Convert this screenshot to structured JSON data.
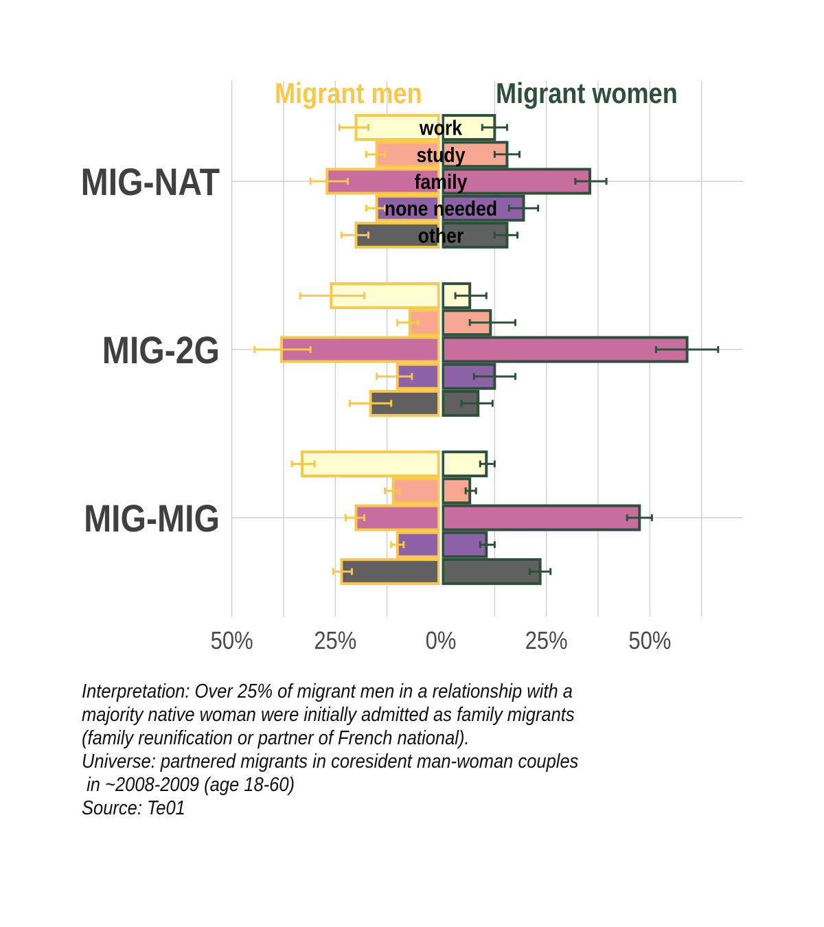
{
  "chart_data": {
    "type": "bar",
    "orientation": "horizontal-diverging",
    "groups": [
      "MIG-NAT",
      "MIG-2G",
      "MIG-MIG"
    ],
    "categories": [
      "work",
      "study",
      "family",
      "none needed",
      "other"
    ],
    "category_colors": [
      "#ffffd2",
      "#f8a792",
      "#c86e9f",
      "#8e62a6",
      "#606060"
    ],
    "sides": [
      {
        "name": "Migrant men",
        "color": "#f7c84a",
        "direction": "left",
        "values": [
          [
            20,
            15,
            27,
            15,
            20
          ],
          [
            26,
            7,
            38,
            10,
            16.5
          ],
          [
            33,
            11,
            20,
            10,
            23.5
          ]
        ],
        "errors": [
          [
            [
              17,
              24
            ],
            [
              13,
              17.5
            ],
            [
              22,
              31
            ],
            [
              13,
              17.5
            ],
            [
              17,
              23.5
            ]
          ],
          [
            [
              18,
              33.5
            ],
            [
              5,
              10
            ],
            [
              31,
              44.5
            ],
            [
              6.5,
              15
            ],
            [
              11.5,
              21.5
            ]
          ],
          [
            [
              30,
              35.5
            ],
            [
              9.5,
              13
            ],
            [
              18,
              22.5
            ],
            [
              8.5,
              11.5
            ],
            [
              21,
              25.5
            ]
          ]
        ]
      },
      {
        "name": "Migrant women",
        "color": "#2e4f3c",
        "direction": "right",
        "values": [
          [
            12.5,
            15.5,
            35.5,
            19.5,
            15.5
          ],
          [
            6.5,
            11.5,
            59,
            12.5,
            8.5
          ],
          [
            10.5,
            6.5,
            47.5,
            10.5,
            23.5
          ]
        ],
        "errors": [
          [
            [
              9.5,
              15.5
            ],
            [
              12.5,
              18.5
            ],
            [
              32,
              39.5
            ],
            [
              16,
              23
            ],
            [
              12.5,
              18
            ]
          ],
          [
            [
              3,
              10.5
            ],
            [
              6.5,
              17.5
            ],
            [
              51.5,
              66.5
            ],
            [
              7.5,
              17.5
            ],
            [
              4.5,
              12
            ]
          ],
          [
            [
              9,
              12.5
            ],
            [
              5.5,
              8
            ],
            [
              44.5,
              50.5
            ],
            [
              9,
              12.5
            ],
            [
              21,
              26
            ]
          ]
        ]
      }
    ],
    "x_ticks": [
      "50%",
      "25%",
      "0%",
      "25%",
      "50%"
    ],
    "x_tick_values": [
      -50,
      -25,
      0,
      25,
      50
    ],
    "xlim": [
      -50,
      73
    ],
    "xlabel": "",
    "ylabel": "",
    "grid": true,
    "bar_labels_group": "MIG-NAT"
  },
  "caption": {
    "lines": [
      "Interpretation: Over 25% of migrant men in a relationship with a",
      "majority native woman were initially admitted as family migrants",
      "(family reunification or partner of French national).",
      "Universe: partnered migrants in coresident man-woman couples",
      " in ~2008-2009 (age 18-60)",
      "Source: Te01"
    ]
  }
}
